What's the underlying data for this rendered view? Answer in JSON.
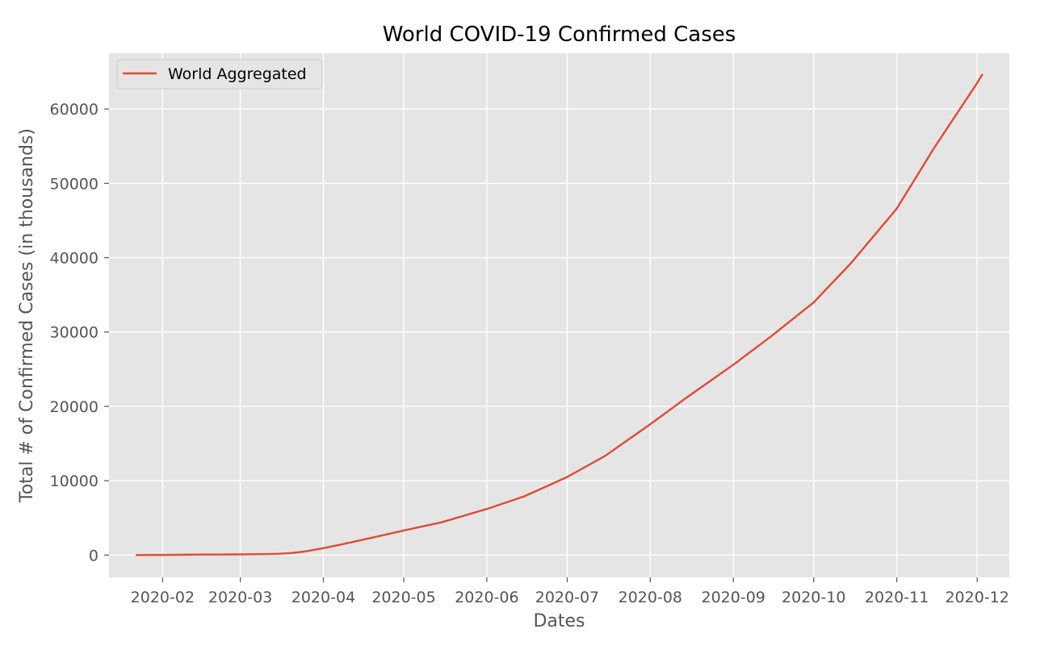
{
  "chart_data": {
    "type": "line",
    "title": "World COVID-19 Confirmed Cases",
    "xlabel": "Dates",
    "ylabel": "Total # of Confirmed Cases (in thousands)",
    "grid": true,
    "legend_position": "top-left",
    "background_color": "#e5e5e5",
    "grid_color": "#ffffff",
    "x_tick_labels": [
      "2020-02",
      "2020-03",
      "2020-04",
      "2020-05",
      "2020-06",
      "2020-07",
      "2020-08",
      "2020-09",
      "2020-10",
      "2020-11",
      "2020-12"
    ],
    "y_tick_labels": [
      "0",
      "10000",
      "20000",
      "30000",
      "40000",
      "50000",
      "60000"
    ],
    "x_range": [
      "2020-01-12",
      "2020-12-13"
    ],
    "ylim": [
      -3000,
      67500
    ],
    "series": [
      {
        "name": "World Aggregated",
        "color": "#e24a33",
        "points": [
          [
            "2020-01-22",
            0.6
          ],
          [
            "2020-02-01",
            12
          ],
          [
            "2020-02-15",
            69
          ],
          [
            "2020-03-01",
            88
          ],
          [
            "2020-03-10",
            120
          ],
          [
            "2020-03-15",
            170
          ],
          [
            "2020-03-20",
            280
          ],
          [
            "2020-03-25",
            470
          ],
          [
            "2020-04-01",
            930
          ],
          [
            "2020-04-10",
            1600
          ],
          [
            "2020-04-20",
            2400
          ],
          [
            "2020-05-01",
            3300
          ],
          [
            "2020-05-15",
            4400
          ],
          [
            "2020-06-01",
            6200
          ],
          [
            "2020-06-15",
            7900
          ],
          [
            "2020-07-01",
            10500
          ],
          [
            "2020-07-15",
            13300
          ],
          [
            "2020-08-01",
            17600
          ],
          [
            "2020-08-15",
            21300
          ],
          [
            "2020-09-01",
            25600
          ],
          [
            "2020-09-15",
            29400
          ],
          [
            "2020-10-01",
            34000
          ],
          [
            "2020-10-15",
            39300
          ],
          [
            "2020-11-01",
            46600
          ],
          [
            "2020-11-15",
            54800
          ],
          [
            "2020-12-01",
            63500
          ],
          [
            "2020-12-03",
            64700
          ]
        ]
      }
    ]
  }
}
